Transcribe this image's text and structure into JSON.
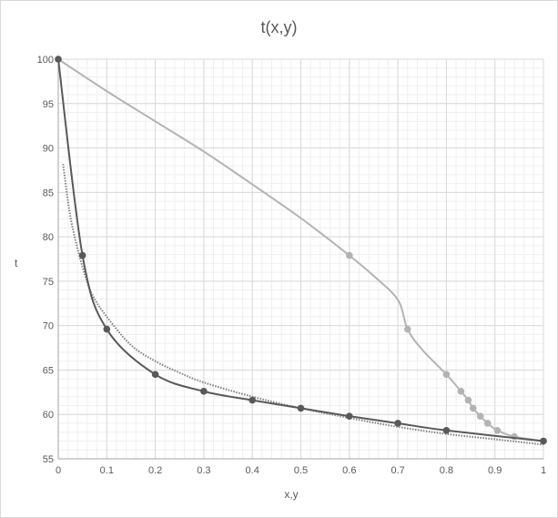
{
  "chart_data": {
    "type": "scatter",
    "title": "t(x,y)",
    "xlabel": "x,y",
    "ylabel": "t",
    "xlim": [
      0,
      1
    ],
    "ylim": [
      55,
      100
    ],
    "x_ticks": [
      0,
      0.1,
      0.2,
      0.3,
      0.4,
      0.5,
      0.6,
      0.7,
      0.8,
      0.9,
      1
    ],
    "y_ticks": [
      55,
      60,
      65,
      70,
      75,
      80,
      85,
      90,
      95,
      100
    ],
    "grid": true,
    "minor_grid": true,
    "legend": "none",
    "colors": {
      "liquid_series": "#595959",
      "vapor_series": "#b3b3b3",
      "fitted_series": "#7f7f7f",
      "major_grid": "#d9d9d9",
      "minor_grid": "#efefef",
      "axis": "#a6a6a6"
    },
    "series": [
      {
        "style": "solid-dark-markers",
        "points": [
          [
            0,
            100
          ],
          [
            0.05,
            77.9
          ],
          [
            0.1,
            69.6
          ],
          [
            0.2,
            64.5
          ],
          [
            0.3,
            62.6
          ],
          [
            0.4,
            61.6
          ],
          [
            0.5,
            60.7
          ],
          [
            0.6,
            59.8
          ],
          [
            0.7,
            59.0
          ],
          [
            0.8,
            58.2
          ],
          [
            1.0,
            57.0
          ]
        ],
        "markers": [
          [
            0,
            100
          ],
          [
            0.05,
            77.9
          ],
          [
            0.1,
            69.6
          ],
          [
            0.2,
            64.5
          ],
          [
            0.3,
            62.6
          ],
          [
            0.4,
            61.6
          ],
          [
            0.5,
            60.7
          ],
          [
            0.6,
            59.8
          ],
          [
            0.7,
            59.0
          ],
          [
            0.8,
            58.2
          ],
          [
            1.0,
            57.0
          ]
        ]
      },
      {
        "style": "solid-light-markers",
        "points": [
          [
            0,
            100
          ],
          [
            0.1,
            96.4
          ],
          [
            0.2,
            93.0
          ],
          [
            0.3,
            89.6
          ],
          [
            0.4,
            85.9
          ],
          [
            0.5,
            82.1
          ],
          [
            0.6,
            77.9
          ],
          [
            0.65,
            75.6
          ],
          [
            0.7,
            72.9
          ],
          [
            0.72,
            69.6
          ],
          [
            0.75,
            67.3
          ],
          [
            0.8,
            64.5
          ],
          [
            0.83,
            62.6
          ],
          [
            0.845,
            61.6
          ],
          [
            0.855,
            60.7
          ],
          [
            0.87,
            59.8
          ],
          [
            0.885,
            59.0
          ],
          [
            0.905,
            58.2
          ],
          [
            0.94,
            57.5
          ],
          [
            1.0,
            57.0
          ]
        ],
        "markers": [
          [
            0,
            100
          ],
          [
            0.6,
            77.9
          ],
          [
            0.72,
            69.6
          ],
          [
            0.8,
            64.5
          ],
          [
            0.83,
            62.6
          ],
          [
            0.845,
            61.6
          ],
          [
            0.855,
            60.7
          ],
          [
            0.87,
            59.8
          ],
          [
            0.885,
            59.0
          ],
          [
            0.905,
            58.2
          ],
          [
            0.94,
            57.5
          ],
          [
            1.0,
            57.0
          ]
        ]
      },
      {
        "style": "dotted",
        "points": [
          [
            0.01,
            88.2
          ],
          [
            0.02,
            84.0
          ],
          [
            0.03,
            80.9
          ],
          [
            0.05,
            76.6
          ],
          [
            0.07,
            73.5
          ],
          [
            0.1,
            71.0
          ],
          [
            0.15,
            67.8
          ],
          [
            0.2,
            66.0
          ],
          [
            0.25,
            64.7
          ],
          [
            0.3,
            63.6
          ],
          [
            0.4,
            62.0
          ],
          [
            0.5,
            60.7
          ],
          [
            0.6,
            59.6
          ],
          [
            0.7,
            58.6
          ],
          [
            0.8,
            57.8
          ],
          [
            0.9,
            57.2
          ],
          [
            1.0,
            56.6
          ]
        ],
        "markers": []
      }
    ]
  }
}
